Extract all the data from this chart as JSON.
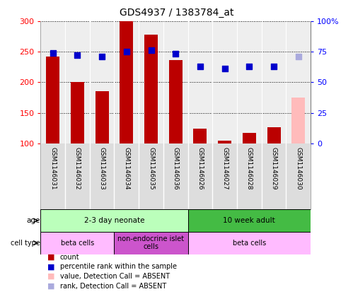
{
  "title": "GDS4937 / 1383784_at",
  "samples": [
    "GSM1146031",
    "GSM1146032",
    "GSM1146033",
    "GSM1146034",
    "GSM1146035",
    "GSM1146036",
    "GSM1146026",
    "GSM1146027",
    "GSM1146028",
    "GSM1146029",
    "GSM1146030"
  ],
  "bar_values": [
    242,
    200,
    185,
    300,
    278,
    236,
    124,
    105,
    117,
    126,
    175
  ],
  "bar_colors": [
    "#bb0000",
    "#bb0000",
    "#bb0000",
    "#bb0000",
    "#bb0000",
    "#bb0000",
    "#bb0000",
    "#bb0000",
    "#bb0000",
    "#bb0000",
    "#ffbbbb"
  ],
  "dot_values": [
    74,
    72,
    71,
    75,
    76,
    73,
    63,
    61,
    63,
    63,
    71
  ],
  "dot_colors": [
    "#0000cc",
    "#0000cc",
    "#0000cc",
    "#0000cc",
    "#0000cc",
    "#0000cc",
    "#0000cc",
    "#0000cc",
    "#0000cc",
    "#0000cc",
    "#aaaadd"
  ],
  "bar_bottom": 100,
  "ylim_left": [
    100,
    300
  ],
  "ylim_right": [
    0,
    100
  ],
  "yticks_left": [
    100,
    150,
    200,
    250,
    300
  ],
  "yticks_right": [
    0,
    25,
    50,
    75,
    100
  ],
  "ytick_labels_left": [
    "100",
    "150",
    "200",
    "250",
    "300"
  ],
  "ytick_labels_right": [
    "0",
    "25",
    "50",
    "75",
    "100%"
  ],
  "age_groups": [
    {
      "label": "2-3 day neonate",
      "start": 0,
      "end": 6,
      "color": "#bbffbb"
    },
    {
      "label": "10 week adult",
      "start": 6,
      "end": 11,
      "color": "#44bb44"
    }
  ],
  "cell_type_groups": [
    {
      "label": "beta cells",
      "start": 0,
      "end": 3,
      "color": "#ffbbff"
    },
    {
      "label": "non-endocrine islet\ncells",
      "start": 3,
      "end": 6,
      "color": "#cc55cc"
    },
    {
      "label": "beta cells",
      "start": 6,
      "end": 11,
      "color": "#ffbbff"
    }
  ],
  "legend_items": [
    {
      "label": "count",
      "color": "#bb0000"
    },
    {
      "label": "percentile rank within the sample",
      "color": "#0000cc"
    },
    {
      "label": "value, Detection Call = ABSENT",
      "color": "#ffbbbb"
    },
    {
      "label": "rank, Detection Call = ABSENT",
      "color": "#aaaadd"
    }
  ],
  "bg_color": "#ffffff",
  "bar_width": 0.55,
  "dot_size": 40,
  "absent_last": true
}
